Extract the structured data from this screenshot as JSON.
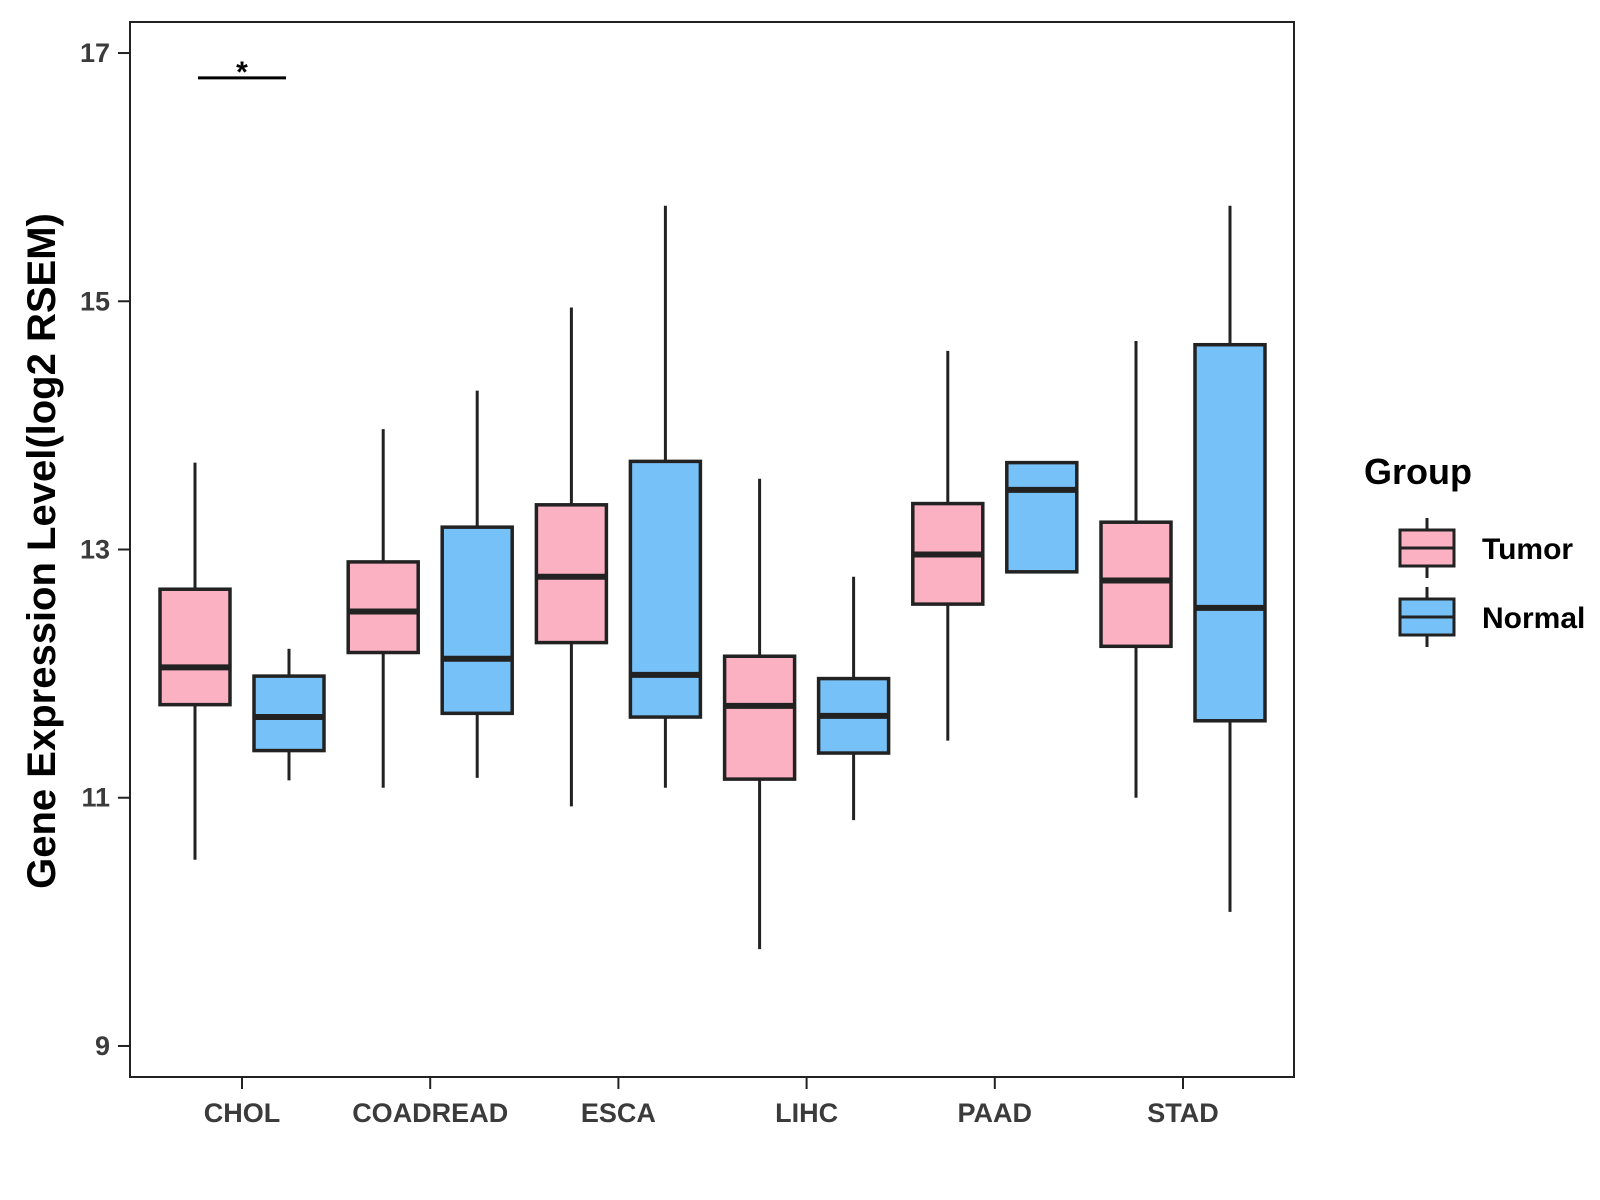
{
  "chart_data": {
    "type": "box",
    "title": "",
    "xlabel": "",
    "ylabel": "Gene Expression Level(log2 RSEM)",
    "categories": [
      "CHOL",
      "COADREAD",
      "ESCA",
      "LIHC",
      "PAAD",
      "STAD"
    ],
    "ylim": [
      8.75,
      17.25
    ],
    "yticks": [
      9,
      11,
      13,
      15,
      17
    ],
    "grid": false,
    "legend": {
      "title": "Group",
      "position": "right"
    },
    "series": [
      {
        "name": "Tumor",
        "color": "#FBB1C2",
        "boxes": [
          {
            "min": 10.5,
            "q1": 11.75,
            "median": 12.05,
            "q3": 12.68,
            "max": 13.7
          },
          {
            "min": 11.08,
            "q1": 12.17,
            "median": 12.5,
            "q3": 12.9,
            "max": 13.97
          },
          {
            "min": 10.93,
            "q1": 12.25,
            "median": 12.78,
            "q3": 13.36,
            "max": 14.95
          },
          {
            "min": 9.78,
            "q1": 11.15,
            "median": 11.74,
            "q3": 12.14,
            "max": 13.57
          },
          {
            "min": 11.46,
            "q1": 12.56,
            "median": 12.96,
            "q3": 13.37,
            "max": 14.6
          },
          {
            "min": 11.0,
            "q1": 12.22,
            "median": 12.75,
            "q3": 13.22,
            "max": 14.68
          }
        ]
      },
      {
        "name": "Normal",
        "color": "#76C1F7",
        "boxes": [
          {
            "min": 11.14,
            "q1": 11.38,
            "median": 11.65,
            "q3": 11.98,
            "max": 12.2
          },
          {
            "min": 11.16,
            "q1": 11.68,
            "median": 12.12,
            "q3": 13.18,
            "max": 14.28
          },
          {
            "min": 11.08,
            "q1": 11.65,
            "median": 11.99,
            "q3": 13.71,
            "max": 15.77
          },
          {
            "min": 10.82,
            "q1": 11.36,
            "median": 11.66,
            "q3": 11.96,
            "max": 12.78
          },
          {
            "min": 12.82,
            "q1": 12.82,
            "median": 13.48,
            "q3": 13.7,
            "max": 13.7
          },
          {
            "min": 10.08,
            "q1": 11.62,
            "median": 12.53,
            "q3": 14.65,
            "max": 15.77
          }
        ]
      }
    ],
    "annotations": [
      {
        "category": "CHOL",
        "text": "*",
        "y": 16.8
      }
    ]
  }
}
